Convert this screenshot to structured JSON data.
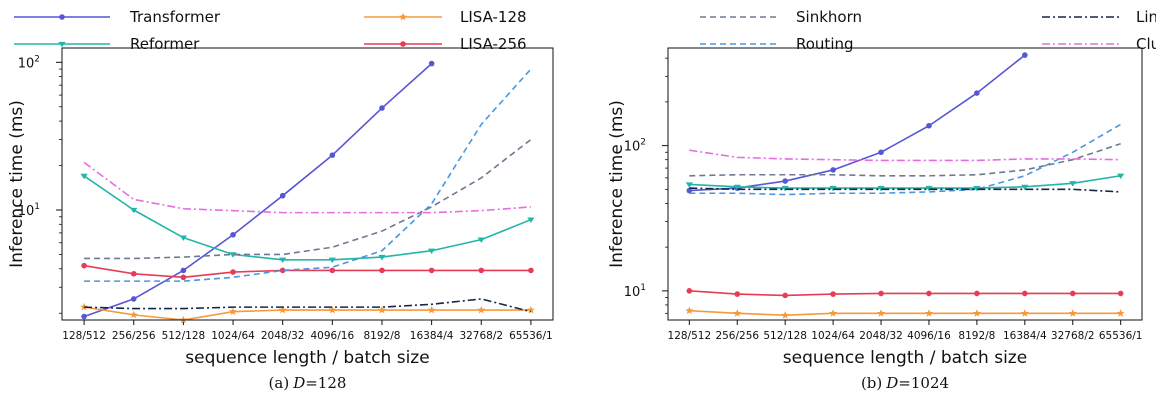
{
  "chart_data": [
    {
      "type": "line",
      "caption_prefix": "(a)",
      "caption_var": "D",
      "caption_value": "=128",
      "xlabel": "sequence length / batch size",
      "ylabel": "Inference time (ms)",
      "yscale": "log",
      "ylim": [
        1.8,
        125
      ],
      "yticks": [
        {
          "v": 10,
          "b": "10",
          "e": "1"
        },
        {
          "v": 100,
          "b": "10",
          "e": "2"
        }
      ],
      "categories": [
        "128/512",
        "256/256",
        "512/128",
        "1024/64",
        "2048/32",
        "4096/16",
        "8192/8",
        "16384/4",
        "32768/2",
        "65536/1"
      ],
      "series": [
        {
          "name": "Transformer",
          "color": "#5757d6",
          "dash": "",
          "marker": "dot",
          "values": [
            1.9,
            2.5,
            3.9,
            6.8,
            12.5,
            23.5,
            49,
            98,
            null,
            null
          ]
        },
        {
          "name": "Reformer",
          "color": "#22b5a8",
          "dash": "",
          "marker": "tri",
          "values": [
            17,
            10,
            6.5,
            5.0,
            4.6,
            4.6,
            4.8,
            5.3,
            6.3,
            8.6
          ]
        },
        {
          "name": "LISA-128",
          "color": "#f59a3c",
          "dash": "",
          "marker": "star",
          "values": [
            2.2,
            1.95,
            1.8,
            2.05,
            2.1,
            2.1,
            2.1,
            2.1,
            2.1,
            2.1
          ]
        },
        {
          "name": "LISA-256",
          "color": "#e63c55",
          "dash": "",
          "marker": "dot",
          "values": [
            4.2,
            3.7,
            3.5,
            3.8,
            3.9,
            3.9,
            3.9,
            3.9,
            3.9,
            3.9
          ]
        },
        {
          "name": "Sinkhorn",
          "color": "#6d7a91",
          "dash": "6,4",
          "marker": "",
          "values": [
            4.7,
            4.7,
            4.8,
            5.0,
            5.0,
            5.6,
            7.2,
            10.5,
            16.5,
            30
          ]
        },
        {
          "name": "Routing",
          "color": "#4a96e0",
          "dash": "6,4",
          "marker": "",
          "values": [
            3.3,
            3.3,
            3.3,
            3.5,
            3.9,
            4.1,
            5.3,
            11,
            38,
            90
          ]
        },
        {
          "name": "Linformer",
          "color": "#152647",
          "dash": "8,3,2,3",
          "marker": "",
          "values": [
            2.2,
            2.15,
            2.15,
            2.2,
            2.2,
            2.2,
            2.2,
            2.3,
            2.5,
            2.05
          ]
        },
        {
          "name": "Clustered",
          "color": "#e86ce0",
          "dash": "8,3,2,3",
          "marker": "",
          "values": [
            21,
            11.8,
            10.2,
            9.9,
            9.6,
            9.6,
            9.6,
            9.6,
            9.9,
            10.5
          ]
        }
      ]
    },
    {
      "type": "line",
      "caption_prefix": "(b)",
      "caption_var": "D",
      "caption_value": "=1024",
      "xlabel": "sequence length / batch size",
      "ylabel": "Inference time (ms)",
      "yscale": "log",
      "ylim": [
        6.3,
        470
      ],
      "yticks": [
        {
          "v": 10,
          "b": "10",
          "e": "1"
        },
        {
          "v": 100,
          "b": "10",
          "e": "2"
        }
      ],
      "categories": [
        "128/512",
        "256/256",
        "512/128",
        "1024/64",
        "2048/32",
        "4096/16",
        "8192/8",
        "16384/4",
        "32768/2",
        "65536/1"
      ],
      "series": [
        {
          "name": "Transformer",
          "color": "#5757d6",
          "dash": "",
          "marker": "dot",
          "values": [
            49,
            51,
            57,
            68,
            90,
            137,
            230,
            420,
            null,
            null
          ]
        },
        {
          "name": "Reformer",
          "color": "#22b5a8",
          "dash": "",
          "marker": "tri",
          "values": [
            54,
            52,
            51,
            51,
            51,
            51,
            51,
            52,
            55,
            62
          ]
        },
        {
          "name": "LISA-128",
          "color": "#f59a3c",
          "dash": "",
          "marker": "star",
          "values": [
            7.3,
            7.0,
            6.8,
            7.0,
            7.0,
            7.0,
            7.0,
            7.0,
            7.0,
            7.0
          ]
        },
        {
          "name": "LISA-256",
          "color": "#e63c55",
          "dash": "",
          "marker": "dot",
          "values": [
            10,
            9.5,
            9.3,
            9.5,
            9.6,
            9.6,
            9.6,
            9.6,
            9.6,
            9.6
          ]
        },
        {
          "name": "Sinkhorn",
          "color": "#6d7a91",
          "dash": "6,4",
          "marker": "",
          "values": [
            62,
            63,
            63,
            63,
            62,
            62,
            63,
            68,
            80,
            103
          ]
        },
        {
          "name": "Routing",
          "color": "#4a96e0",
          "dash": "6,4",
          "marker": "",
          "values": [
            47,
            47,
            46,
            47,
            47,
            48,
            50,
            62,
            90,
            140
          ]
        },
        {
          "name": "Linformer",
          "color": "#152647",
          "dash": "8,3,2,3",
          "marker": "",
          "values": [
            51,
            50,
            50,
            50,
            50,
            50,
            50,
            50,
            50,
            48
          ]
        },
        {
          "name": "Clustered",
          "color": "#e86ce0",
          "dash": "8,3,2,3",
          "marker": "",
          "values": [
            93,
            83,
            81,
            80,
            79,
            79,
            79,
            81,
            81,
            80
          ]
        }
      ]
    }
  ],
  "legend": [
    [
      "Transformer",
      "LISA-128"
    ],
    [
      "Reformer",
      "LISA-256"
    ],
    [
      "Sinkhorn",
      "Linformer"
    ],
    [
      "Routing",
      "Clustered"
    ]
  ]
}
